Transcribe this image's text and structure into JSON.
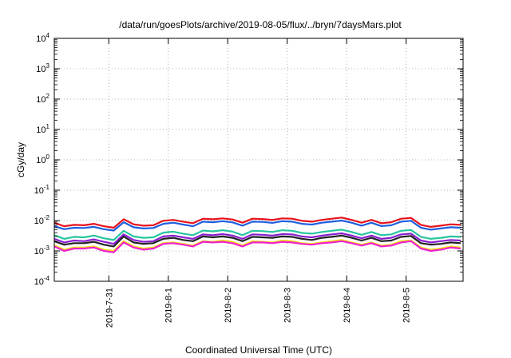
{
  "chart_data": {
    "type": "line",
    "title": "/data/run/goesPlots/archive/2019-08-05/flux/../bryn/7daysMars.plot",
    "xlabel": "Coordinated Universal Time (UTC)",
    "ylabel": "cGy/day",
    "yscale": "log",
    "ylim": [
      0.0001,
      10000
    ],
    "y_ticks": [
      {
        "base": "10",
        "exp": "-4",
        "value": 0.0001
      },
      {
        "base": "10",
        "exp": "-3",
        "value": 0.001
      },
      {
        "base": "10",
        "exp": "-2",
        "value": 0.01
      },
      {
        "base": "10",
        "exp": "-1",
        "value": 0.1
      },
      {
        "base": "10",
        "exp": "0",
        "value": 1
      },
      {
        "base": "10",
        "exp": "1",
        "value": 10
      },
      {
        "base": "10",
        "exp": "2",
        "value": 100
      },
      {
        "base": "10",
        "exp": "3",
        "value": 1000
      },
      {
        "base": "10",
        "exp": "4",
        "value": 10000
      }
    ],
    "xlim": [
      "2019-07-30T02:00",
      "2019-08-05T23:00"
    ],
    "x_ticks": [
      {
        "label": "2019-7-31",
        "value": "2019-07-31T00:00"
      },
      {
        "label": "2019-8-1",
        "value": "2019-08-01T00:00"
      },
      {
        "label": "2019-8-2",
        "value": "2019-08-02T00:00"
      },
      {
        "label": "2019-8-3",
        "value": "2019-08-03T00:00"
      },
      {
        "label": "2019-8-4",
        "value": "2019-08-04T00:00"
      },
      {
        "label": "2019-8-5",
        "value": "2019-08-05T00:00"
      }
    ],
    "grid": true,
    "legend": "none",
    "x": [
      "2019-07-30T02:00",
      "2019-07-30T06:00",
      "2019-07-30T10:00",
      "2019-07-30T14:00",
      "2019-07-30T18:00",
      "2019-07-30T22:00",
      "2019-07-31T02:00",
      "2019-07-31T06:00",
      "2019-07-31T10:00",
      "2019-07-31T14:00",
      "2019-07-31T18:00",
      "2019-07-31T22:00",
      "2019-08-01T02:00",
      "2019-08-01T06:00",
      "2019-08-01T10:00",
      "2019-08-01T14:00",
      "2019-08-01T18:00",
      "2019-08-01T22:00",
      "2019-08-02T02:00",
      "2019-08-02T06:00",
      "2019-08-02T10:00",
      "2019-08-02T14:00",
      "2019-08-02T18:00",
      "2019-08-02T22:00",
      "2019-08-03T02:00",
      "2019-08-03T06:00",
      "2019-08-03T10:00",
      "2019-08-03T14:00",
      "2019-08-03T18:00",
      "2019-08-03T22:00",
      "2019-08-04T02:00",
      "2019-08-04T06:00",
      "2019-08-04T10:00",
      "2019-08-04T14:00",
      "2019-08-04T18:00",
      "2019-08-04T22:00",
      "2019-08-05T02:00",
      "2019-08-05T06:00",
      "2019-08-05T10:00",
      "2019-08-05T14:00",
      "2019-08-05T18:00",
      "2019-08-05T22:00"
    ],
    "series": [
      {
        "color": "#e8111c",
        "values": [
          0.0085,
          0.0065,
          0.0072,
          0.007,
          0.0078,
          0.0065,
          0.0058,
          0.011,
          0.0075,
          0.0068,
          0.007,
          0.0098,
          0.0105,
          0.0092,
          0.0082,
          0.0115,
          0.011,
          0.0118,
          0.0108,
          0.0085,
          0.0115,
          0.0112,
          0.0105,
          0.0118,
          0.0115,
          0.0098,
          0.0092,
          0.0105,
          0.0115,
          0.0125,
          0.0105,
          0.0085,
          0.0105,
          0.0082,
          0.0088,
          0.0115,
          0.0122,
          0.0072,
          0.0062,
          0.0068,
          0.0075,
          0.0072
        ]
      },
      {
        "color": "#1f5fe0",
        "values": [
          0.0065,
          0.0052,
          0.0058,
          0.0057,
          0.0062,
          0.0052,
          0.0047,
          0.0088,
          0.006,
          0.0055,
          0.0057,
          0.0078,
          0.0085,
          0.0074,
          0.0065,
          0.0092,
          0.0088,
          0.0095,
          0.0087,
          0.0068,
          0.0092,
          0.009,
          0.0084,
          0.0095,
          0.0092,
          0.0078,
          0.0074,
          0.0085,
          0.0092,
          0.01,
          0.0085,
          0.0068,
          0.0085,
          0.0066,
          0.007,
          0.0092,
          0.0098,
          0.0058,
          0.005,
          0.0055,
          0.006,
          0.0058
        ]
      },
      {
        "color": "#28c4a0",
        "values": [
          0.0033,
          0.0025,
          0.0029,
          0.0028,
          0.0032,
          0.0026,
          0.0023,
          0.0046,
          0.003,
          0.0027,
          0.0028,
          0.004,
          0.0043,
          0.0037,
          0.0033,
          0.0047,
          0.0044,
          0.0048,
          0.0043,
          0.0033,
          0.0046,
          0.0045,
          0.0042,
          0.0048,
          0.0046,
          0.0039,
          0.0037,
          0.0042,
          0.0046,
          0.005,
          0.0042,
          0.0034,
          0.0042,
          0.0033,
          0.0035,
          0.0046,
          0.0049,
          0.0029,
          0.0025,
          0.0027,
          0.003,
          0.0029
        ]
      },
      {
        "color": "#8a1ed0",
        "values": [
          0.0025,
          0.0019,
          0.0022,
          0.0021,
          0.0024,
          0.002,
          0.0017,
          0.0035,
          0.0023,
          0.002,
          0.0021,
          0.003,
          0.0032,
          0.0028,
          0.0025,
          0.0035,
          0.0033,
          0.0036,
          0.0032,
          0.0025,
          0.0035,
          0.0034,
          0.0032,
          0.0036,
          0.0035,
          0.003,
          0.0028,
          0.0032,
          0.0035,
          0.0038,
          0.0032,
          0.0026,
          0.0032,
          0.0025,
          0.0027,
          0.0035,
          0.0037,
          0.0022,
          0.0019,
          0.0021,
          0.0023,
          0.0022
        ]
      },
      {
        "color": "#222222",
        "values": [
          0.0021,
          0.0016,
          0.0018,
          0.0018,
          0.002,
          0.0016,
          0.0014,
          0.003,
          0.0019,
          0.0017,
          0.0018,
          0.0025,
          0.0027,
          0.0023,
          0.0021,
          0.003,
          0.0028,
          0.003,
          0.0027,
          0.0021,
          0.0029,
          0.0028,
          0.0027,
          0.003,
          0.0029,
          0.0025,
          0.0023,
          0.0027,
          0.0029,
          0.0032,
          0.0027,
          0.0022,
          0.0027,
          0.0021,
          0.0022,
          0.0029,
          0.0031,
          0.0018,
          0.0016,
          0.0017,
          0.0019,
          0.0018
        ]
      },
      {
        "color": "#f0e01a",
        "values": [
          0.0015,
          0.0011,
          0.0013,
          0.0013,
          0.0014,
          0.0011,
          0.001,
          0.0021,
          0.0014,
          0.0012,
          0.0013,
          0.0018,
          0.0019,
          0.0017,
          0.0015,
          0.0021,
          0.002,
          0.0022,
          0.002,
          0.0015,
          0.0021,
          0.002,
          0.0019,
          0.0022,
          0.0021,
          0.0018,
          0.0017,
          0.0019,
          0.0021,
          0.0023,
          0.0019,
          0.0016,
          0.0019,
          0.0015,
          0.0016,
          0.0021,
          0.0022,
          0.0013,
          0.0011,
          0.0012,
          0.0014,
          0.0013
        ]
      },
      {
        "color": "#f020d0",
        "values": [
          0.0014,
          0.001,
          0.0012,
          0.0012,
          0.0013,
          0.001,
          0.0009,
          0.0019,
          0.0013,
          0.0011,
          0.0012,
          0.0017,
          0.0018,
          0.0016,
          0.0014,
          0.002,
          0.0019,
          0.002,
          0.0018,
          0.0014,
          0.0019,
          0.0019,
          0.0018,
          0.002,
          0.0019,
          0.0017,
          0.0016,
          0.0018,
          0.0019,
          0.0021,
          0.0018,
          0.0015,
          0.0018,
          0.0014,
          0.0015,
          0.0019,
          0.0021,
          0.0012,
          0.001,
          0.0011,
          0.0013,
          0.0012
        ]
      }
    ]
  }
}
